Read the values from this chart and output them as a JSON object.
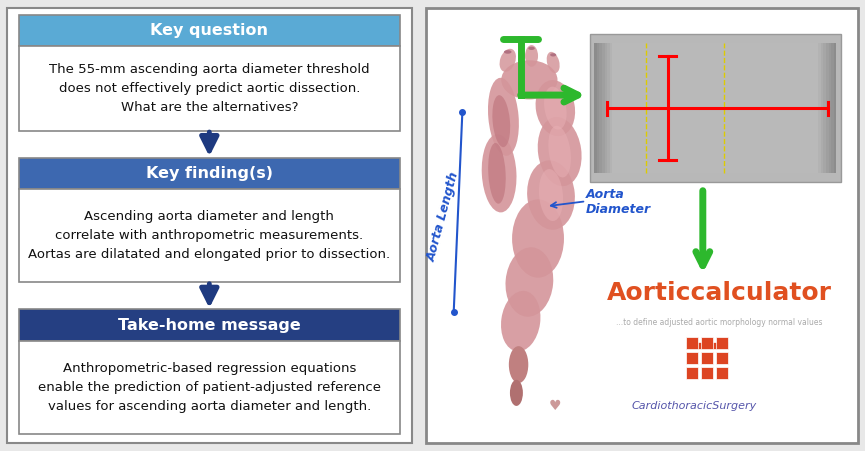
{
  "fig_width": 8.65,
  "fig_height": 4.51,
  "dpi": 100,
  "bg_color": "#e8e8e8",
  "box1_header": "Key question",
  "box1_header_bg": "#5aaad5",
  "box1_body": "The 55-mm ascending aorta diameter threshold\ndoes not effectively predict aortic dissection.\nWhat are the alternatives?",
  "box2_header": "Key finding(s)",
  "box2_header_bg": "#3d68b0",
  "box2_body": "Ascending aorta diameter and length\ncorrelate with anthropometric measurements.\nAortas are dilatated and elongated prior to dissection.",
  "box3_header": "Take-home message",
  "box3_header_bg": "#253f82",
  "box3_body": "Anthropometric-based regression equations\nenable the prediction of patient-adjusted reference\nvalues for ascending aorta diameter and length.",
  "header_text_color": "#ffffff",
  "body_text_color": "#111111",
  "box_border_color": "#888888",
  "arrow_color": "#1e3a80",
  "right_bg": "#ffffff",
  "right_border": "#888888",
  "title": "Aorticcalculator",
  "title_color": "#e05020",
  "subtitle": "...to define adjusted aortic morphology normal values",
  "subtitle_color": "#aaaaaa",
  "aorta_length_label": "Aorta Length",
  "aorta_length_color": "#2255cc",
  "aorta_diameter_label": "Aorta\nDiameter",
  "aorta_diameter_color": "#2255cc",
  "green_color": "#2db82d",
  "bottom_text": "CardiothoracicSurgery",
  "bottom_text_color": "#5555aa"
}
